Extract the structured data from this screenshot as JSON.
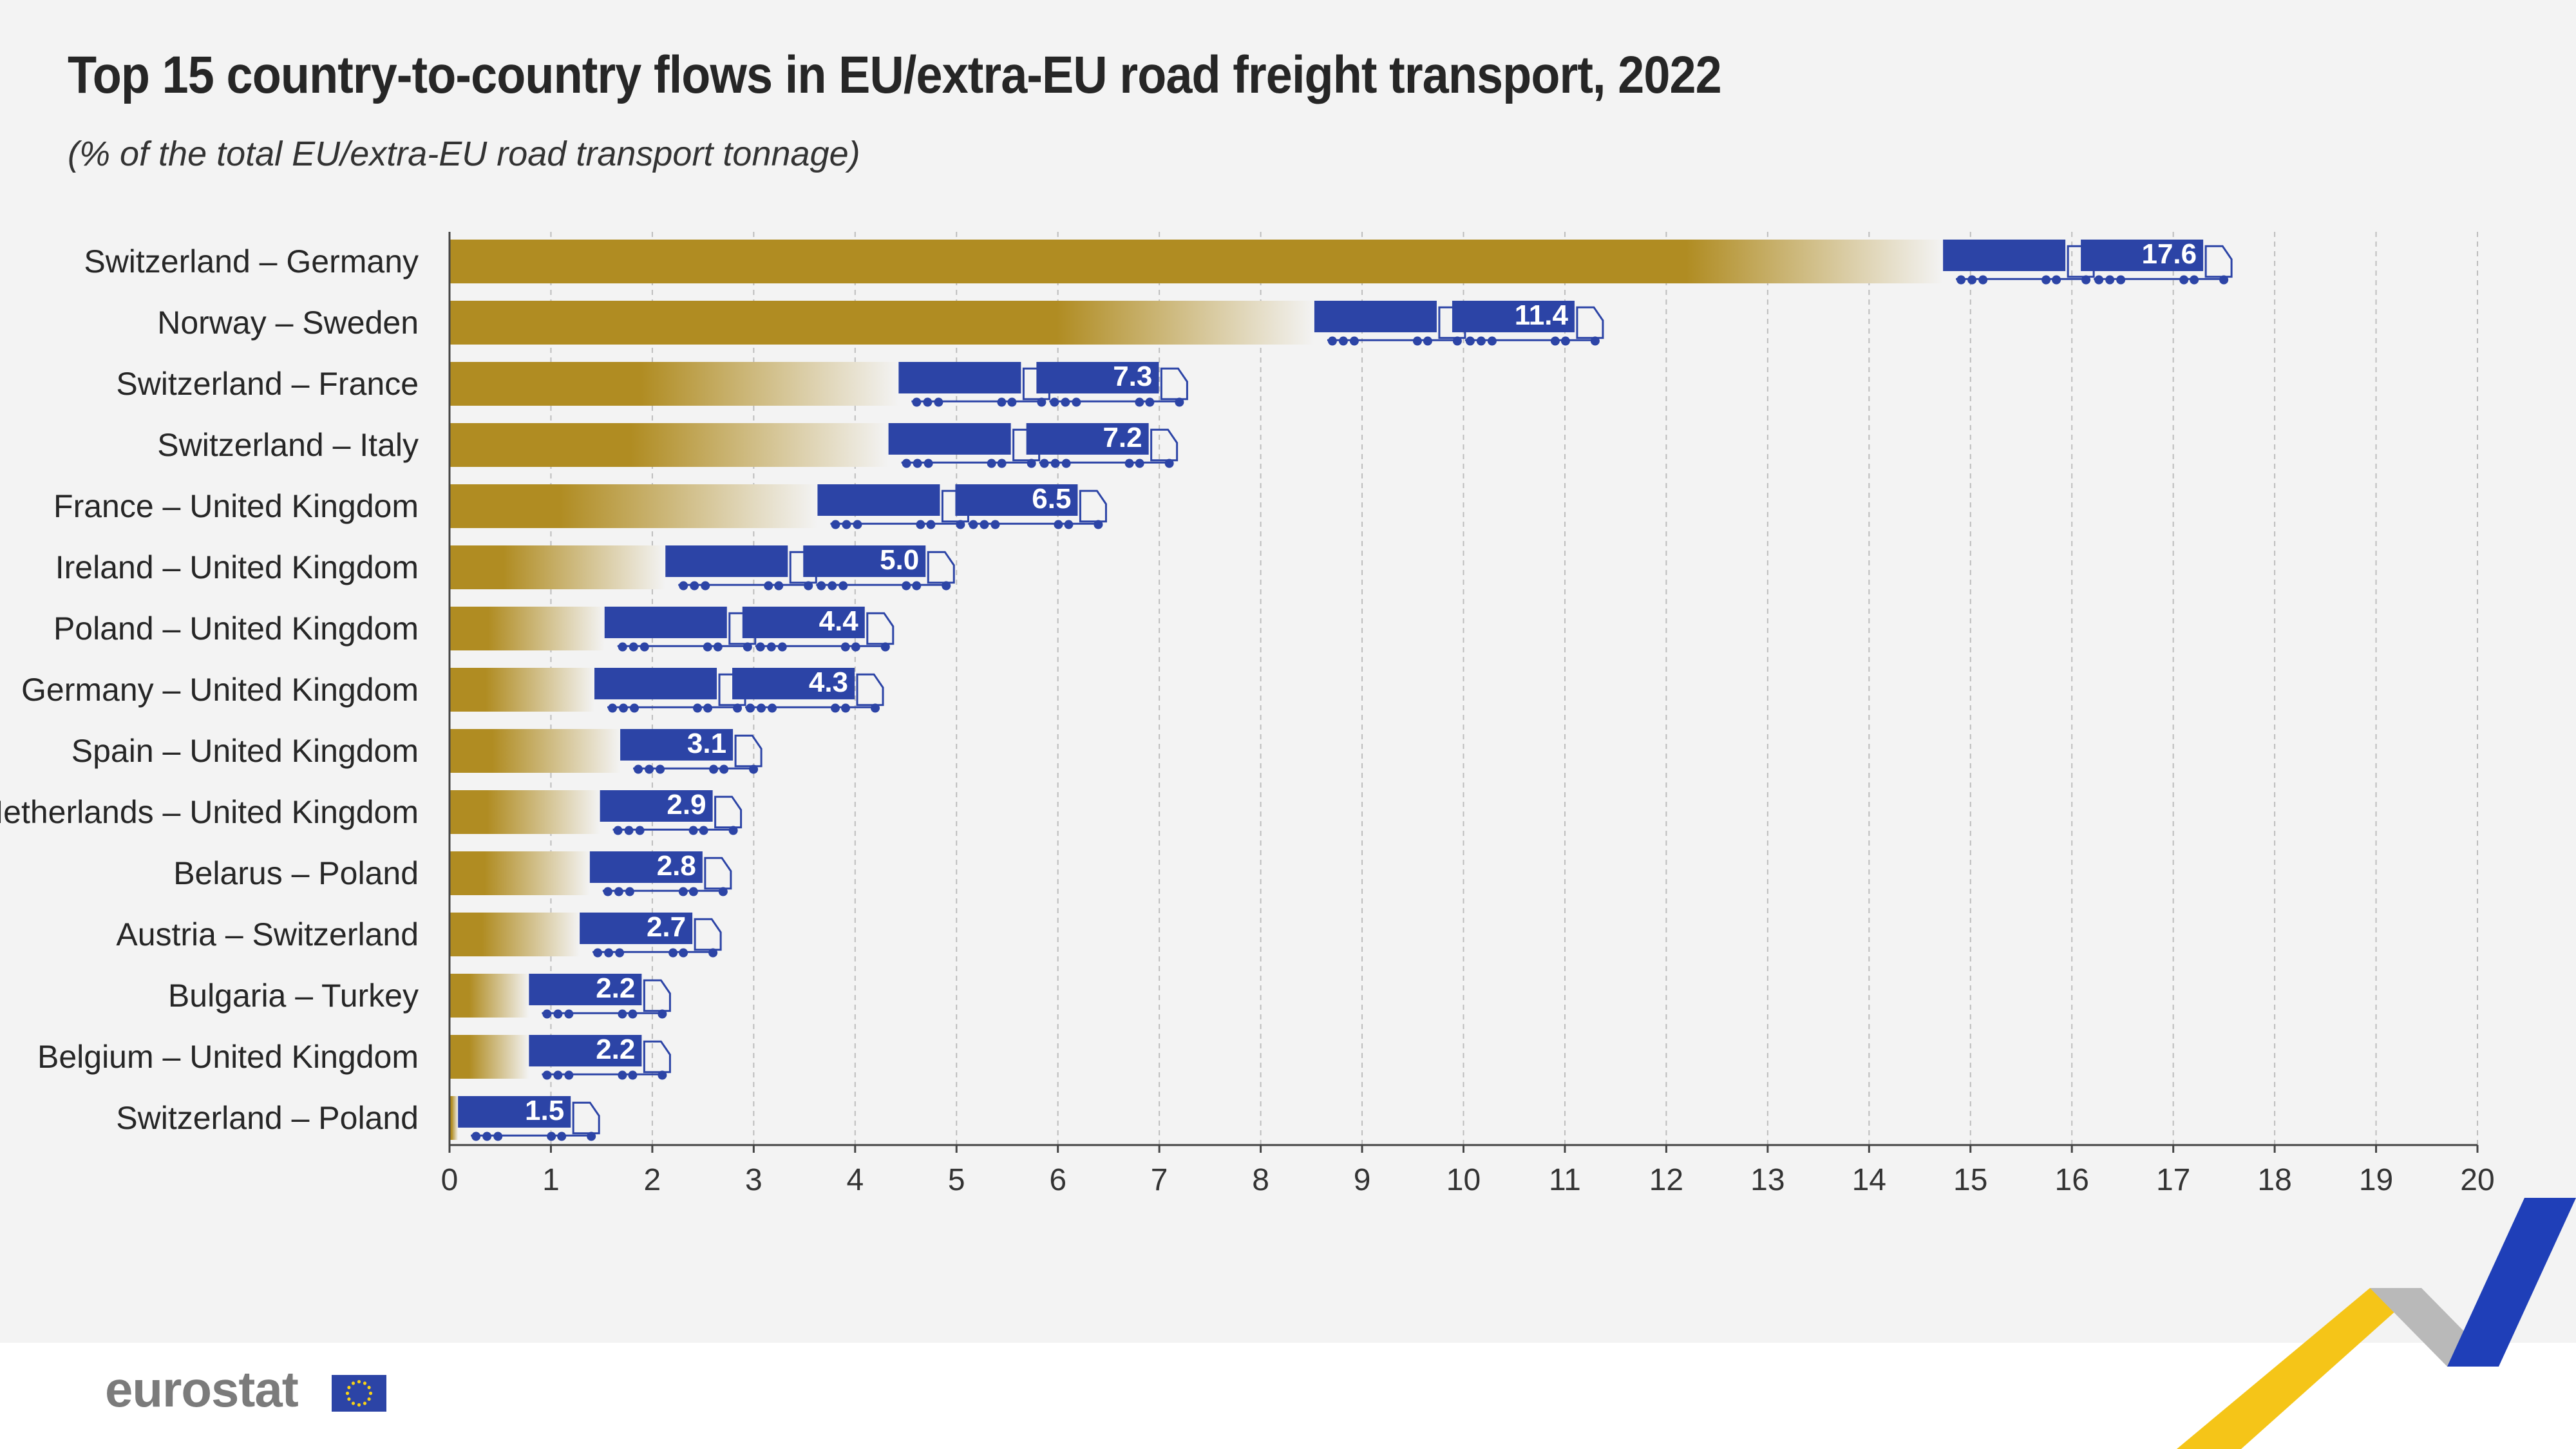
{
  "chart_data": {
    "type": "bar",
    "orientation": "horizontal",
    "title": "Top 15 country-to-country flows in EU/extra-EU road freight transport, 2022",
    "subtitle": "(% of the total EU/extra-EU road transport tonnage)",
    "categories": [
      "Switzerland – Germany",
      "Norway – Sweden",
      "Switzerland – France",
      "Switzerland – Italy",
      "France – United Kingdom",
      "Ireland – United Kingdom",
      "Poland – United Kingdom",
      "Germany – United Kingdom",
      "Spain – United Kingdom",
      "Netherlands – United Kingdom",
      "Belarus – Poland",
      "Austria – Switzerland",
      "Bulgaria – Turkey",
      "Belgium – United Kingdom",
      "Switzerland – Poland"
    ],
    "values": [
      17.6,
      11.4,
      7.3,
      7.2,
      6.5,
      5.0,
      4.4,
      4.3,
      3.1,
      2.9,
      2.8,
      2.7,
      2.2,
      2.2,
      1.5
    ],
    "value_labels": [
      "17.6",
      "11.4",
      "7.3",
      "7.2",
      "6.5",
      "5.0",
      "4.4",
      "4.3",
      "3.1",
      "2.9",
      "2.8",
      "2.7",
      "2.2",
      "2.2",
      "1.5"
    ],
    "xlim": [
      0,
      20
    ],
    "xticks": [
      "0",
      "1",
      "2",
      "3",
      "4",
      "5",
      "6",
      "7",
      "8",
      "9",
      "10",
      "11",
      "12",
      "13",
      "14",
      "15",
      "16",
      "17",
      "18",
      "19",
      "20"
    ],
    "xlabel": "",
    "ylabel": "",
    "grid": "vertical dashed",
    "colors": {
      "bar": "#b08c22",
      "truck": "#2c44a6",
      "axis": "#444444",
      "grid": "#bdbdbd",
      "label_text": "#ffffff"
    }
  },
  "branding": {
    "logo_text": "eurostat",
    "flag_color": "#2c44a6",
    "star_color": "#f7d117",
    "ribbon_colors": [
      "#f5c518",
      "#b9b9b9",
      "#1f3fb8"
    ]
  }
}
